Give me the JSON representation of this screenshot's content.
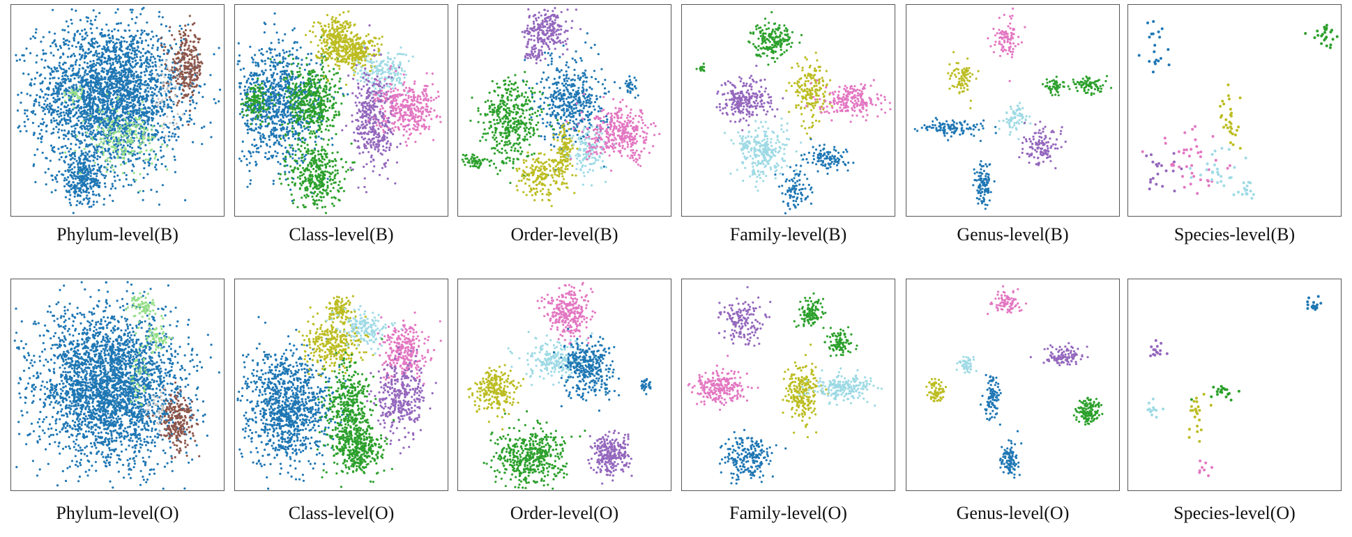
{
  "palette": {
    "blue": "#1f77b4",
    "green": "#2ca02c",
    "olive": "#bcbd22",
    "cyan": "#9edae5",
    "purple": "#9467bd",
    "pink": "#e377c2",
    "brown": "#8c564b",
    "lightgreen": "#98df8a",
    "grey": "#c7c7c7"
  },
  "chart_data": [
    {
      "type": "scatter",
      "title": "Phylum-level(B)",
      "grid": false,
      "clusters": [
        {
          "color": "blue",
          "center": [
            -4,
            7
          ],
          "spread": [
            17,
            17
          ],
          "n": 2600
        },
        {
          "color": "blue",
          "center": [
            -16,
            -32
          ],
          "spread": [
            6,
            6
          ],
          "n": 300
        },
        {
          "color": "brown",
          "center": [
            32,
            21
          ],
          "spread": [
            4,
            8
          ],
          "n": 260
        },
        {
          "color": "lightgreen",
          "center": [
            2,
            -13
          ],
          "spread": [
            8,
            7
          ],
          "n": 200
        },
        {
          "color": "lightgreen",
          "center": [
            -20,
            8
          ],
          "spread": [
            2,
            2
          ],
          "n": 30
        },
        {
          "color": "grey",
          "center": [
            22,
            8
          ],
          "spread": [
            4,
            8
          ],
          "n": 40
        }
      ]
    },
    {
      "type": "scatter",
      "title": "Class-level(B)",
      "grid": false,
      "clusters": [
        {
          "color": "blue",
          "center": [
            -30,
            3
          ],
          "spread": [
            10,
            14
          ],
          "n": 900
        },
        {
          "color": "green",
          "center": [
            -40,
            5
          ],
          "spread": [
            3,
            4
          ],
          "n": 120
        },
        {
          "color": "green",
          "center": [
            -14,
            5
          ],
          "spread": [
            6,
            9
          ],
          "n": 450
        },
        {
          "color": "green",
          "center": [
            -12,
            -30
          ],
          "spread": [
            6,
            8
          ],
          "n": 350
        },
        {
          "color": "olive",
          "center": [
            -3,
            33
          ],
          "spread": [
            5,
            6
          ],
          "n": 300
        },
        {
          "color": "olive",
          "center": [
            8,
            28
          ],
          "spread": [
            5,
            4
          ],
          "n": 200
        },
        {
          "color": "cyan",
          "center": [
            19,
            18
          ],
          "spread": [
            6,
            5
          ],
          "n": 180
        },
        {
          "color": "purple",
          "center": [
            15,
            -5
          ],
          "spread": [
            5,
            12
          ],
          "n": 380
        },
        {
          "color": "pink",
          "center": [
            31,
            1
          ],
          "spread": [
            7,
            6
          ],
          "n": 350
        }
      ]
    },
    {
      "type": "scatter",
      "title": "Order-level(B)",
      "grid": false,
      "clusters": [
        {
          "color": "purple",
          "center": [
            -9,
            38
          ],
          "spread": [
            5,
            5
          ],
          "n": 220
        },
        {
          "color": "purple",
          "center": [
            -14,
            28
          ],
          "spread": [
            2,
            2
          ],
          "n": 40
        },
        {
          "color": "blue",
          "center": [
            3,
            5
          ],
          "spread": [
            8,
            10
          ],
          "n": 450
        },
        {
          "color": "blue",
          "center": [
            31,
            12
          ],
          "spread": [
            1.5,
            2
          ],
          "n": 30
        },
        {
          "color": "green",
          "center": [
            -25,
            -5
          ],
          "spread": [
            7,
            10
          ],
          "n": 400
        },
        {
          "color": "green",
          "center": [
            -42,
            -24
          ],
          "spread": [
            3,
            2
          ],
          "n": 50
        },
        {
          "color": "olive",
          "center": [
            -11,
            -30
          ],
          "spread": [
            6,
            5
          ],
          "n": 200
        },
        {
          "color": "olive",
          "center": [
            0,
            -18
          ],
          "spread": [
            2,
            5
          ],
          "n": 100
        },
        {
          "color": "cyan",
          "center": [
            11,
            -20
          ],
          "spread": [
            4,
            6
          ],
          "n": 130
        },
        {
          "color": "pink",
          "center": [
            26,
            -11
          ],
          "spread": [
            8,
            6
          ],
          "n": 350
        }
      ]
    },
    {
      "type": "scatter",
      "title": "Family-level(B)",
      "grid": false,
      "clusters": [
        {
          "color": "green",
          "center": [
            -8,
            34
          ],
          "spread": [
            5,
            4
          ],
          "n": 180
        },
        {
          "color": "green",
          "center": [
            -41,
            20
          ],
          "spread": [
            1,
            1
          ],
          "n": 12
        },
        {
          "color": "purple",
          "center": [
            -20,
            5
          ],
          "spread": [
            6,
            5
          ],
          "n": 230
        },
        {
          "color": "olive",
          "center": [
            10,
            9
          ],
          "spread": [
            4,
            7
          ],
          "n": 180
        },
        {
          "color": "pink",
          "center": [
            30,
            5
          ],
          "spread": [
            7,
            4
          ],
          "n": 200
        },
        {
          "color": "cyan",
          "center": [
            -12,
            -19
          ],
          "spread": [
            6,
            6
          ],
          "n": 260
        },
        {
          "color": "blue",
          "center": [
            18,
            -22
          ],
          "spread": [
            5,
            3
          ],
          "n": 100
        },
        {
          "color": "blue",
          "center": [
            3,
            -37
          ],
          "spread": [
            3,
            5
          ],
          "n": 90
        }
      ]
    },
    {
      "type": "scatter",
      "title": "Genus-level(B)",
      "grid": false,
      "clusters": [
        {
          "color": "pink",
          "center": [
            -3,
            34
          ],
          "spread": [
            3,
            5
          ],
          "n": 90
        },
        {
          "color": "olive",
          "center": [
            -24,
            16
          ],
          "spread": [
            3,
            4
          ],
          "n": 80
        },
        {
          "color": "green",
          "center": [
            19,
            12
          ],
          "spread": [
            2,
            2
          ],
          "n": 50
        },
        {
          "color": "green",
          "center": [
            35,
            12
          ],
          "spread": [
            4,
            2
          ],
          "n": 80
        },
        {
          "color": "blue",
          "center": [
            -28,
            -8
          ],
          "spread": [
            8,
            2
          ],
          "n": 110
        },
        {
          "color": "cyan",
          "center": [
            1,
            -3
          ],
          "spread": [
            3,
            3
          ],
          "n": 70
        },
        {
          "color": "purple",
          "center": [
            13,
            -17
          ],
          "spread": [
            4,
            4
          ],
          "n": 120
        },
        {
          "color": "blue",
          "center": [
            -14,
            -34
          ],
          "spread": [
            2,
            6
          ],
          "n": 110
        }
      ]
    },
    {
      "type": "scatter",
      "title": "Species-level(B)",
      "grid": false,
      "clusters": [
        {
          "color": "blue",
          "center": [
            -38,
            30
          ],
          "spread": [
            3,
            6
          ],
          "n": 20
        },
        {
          "color": "green",
          "center": [
            40,
            36
          ],
          "spread": [
            3,
            3
          ],
          "n": 25
        },
        {
          "color": "olive",
          "center": [
            -3,
            -2
          ],
          "spread": [
            3,
            7
          ],
          "n": 30
        },
        {
          "color": "purple",
          "center": [
            -34,
            -31
          ],
          "spread": [
            4,
            5
          ],
          "n": 20
        },
        {
          "color": "pink",
          "center": [
            -20,
            -25
          ],
          "spread": [
            8,
            8
          ],
          "n": 40
        },
        {
          "color": "cyan",
          "center": [
            -7,
            -28
          ],
          "spread": [
            6,
            6
          ],
          "n": 25
        },
        {
          "color": "cyan",
          "center": [
            5,
            -37
          ],
          "spread": [
            3,
            2
          ],
          "n": 15
        }
      ]
    },
    {
      "type": "scatter",
      "title": "Phylum-level(O)",
      "grid": false,
      "clusters": [
        {
          "color": "blue",
          "center": [
            -4,
            -1
          ],
          "spread": [
            17,
            18
          ],
          "n": 2800
        },
        {
          "color": "lightgreen",
          "center": [
            12,
            37
          ],
          "spread": [
            3,
            3
          ],
          "n": 70
        },
        {
          "color": "lightgreen",
          "center": [
            18,
            23
          ],
          "spread": [
            3,
            3
          ],
          "n": 60
        },
        {
          "color": "lightgreen",
          "center": [
            10,
            5
          ],
          "spread": [
            2,
            8
          ],
          "n": 40
        },
        {
          "color": "brown",
          "center": [
            28,
            -17
          ],
          "spread": [
            4,
            6
          ],
          "n": 220
        },
        {
          "color": "grey",
          "center": [
            18,
            -10
          ],
          "spread": [
            2,
            4
          ],
          "n": 30
        }
      ]
    },
    {
      "type": "scatter",
      "title": "Class-level(O)",
      "grid": false,
      "clusters": [
        {
          "color": "blue",
          "center": [
            -26,
            -10
          ],
          "spread": [
            10,
            13
          ],
          "n": 1000
        },
        {
          "color": "olive",
          "center": [
            -1,
            36
          ],
          "spread": [
            3,
            3
          ],
          "n": 100
        },
        {
          "color": "olive",
          "center": [
            -3,
            20
          ],
          "spread": [
            7,
            6
          ],
          "n": 300
        },
        {
          "color": "cyan",
          "center": [
            11,
            27
          ],
          "spread": [
            6,
            4
          ],
          "n": 150
        },
        {
          "color": "pink",
          "center": [
            29,
            16
          ],
          "spread": [
            5,
            6
          ],
          "n": 280
        },
        {
          "color": "purple",
          "center": [
            27,
            -6
          ],
          "spread": [
            6,
            9
          ],
          "n": 330
        },
        {
          "color": "green",
          "center": [
            3,
            -10
          ],
          "spread": [
            5,
            10
          ],
          "n": 400
        },
        {
          "color": "green",
          "center": [
            7,
            -30
          ],
          "spread": [
            6,
            6
          ],
          "n": 350
        }
      ]
    },
    {
      "type": "scatter",
      "title": "Order-level(O)",
      "grid": false,
      "clusters": [
        {
          "color": "pink",
          "center": [
            1,
            34
          ],
          "spread": [
            5,
            6
          ],
          "n": 280
        },
        {
          "color": "cyan",
          "center": [
            -5,
            12
          ],
          "spread": [
            7,
            5
          ],
          "n": 220
        },
        {
          "color": "blue",
          "center": [
            11,
            8
          ],
          "spread": [
            6,
            7
          ],
          "n": 320
        },
        {
          "color": "blue",
          "center": [
            38,
            0
          ],
          "spread": [
            1.5,
            1.5
          ],
          "n": 30
        },
        {
          "color": "olive",
          "center": [
            -33,
            -3
          ],
          "spread": [
            5,
            5
          ],
          "n": 220
        },
        {
          "color": "green",
          "center": [
            -17,
            -34
          ],
          "spread": [
            8,
            7
          ],
          "n": 450
        },
        {
          "color": "purple",
          "center": [
            21,
            -33
          ],
          "spread": [
            4,
            5
          ],
          "n": 260
        }
      ]
    },
    {
      "type": "scatter",
      "title": "Family-level(O)",
      "grid": false,
      "clusters": [
        {
          "color": "green",
          "center": [
            10,
            34
          ],
          "spread": [
            3,
            4
          ],
          "n": 110
        },
        {
          "color": "green",
          "center": [
            24,
            20
          ],
          "spread": [
            3,
            3
          ],
          "n": 90
        },
        {
          "color": "purple",
          "center": [
            -22,
            30
          ],
          "spread": [
            5,
            5
          ],
          "n": 150
        },
        {
          "color": "pink",
          "center": [
            -32,
            -1
          ],
          "spread": [
            6,
            4
          ],
          "n": 220
        },
        {
          "color": "olive",
          "center": [
            6,
            -3
          ],
          "spread": [
            4,
            7
          ],
          "n": 220
        },
        {
          "color": "cyan",
          "center": [
            26,
            -1
          ],
          "spread": [
            7,
            3
          ],
          "n": 200
        },
        {
          "color": "blue",
          "center": [
            -20,
            -34
          ],
          "spread": [
            5,
            5
          ],
          "n": 200
        }
      ]
    },
    {
      "type": "scatter",
      "title": "Genus-level(O)",
      "grid": false,
      "clusters": [
        {
          "color": "pink",
          "center": [
            -3,
            39
          ],
          "spread": [
            3,
            3
          ],
          "n": 80
        },
        {
          "color": "cyan",
          "center": [
            -22,
            10
          ],
          "spread": [
            2,
            2
          ],
          "n": 50
        },
        {
          "color": "olive",
          "center": [
            -36,
            -2
          ],
          "spread": [
            2,
            3
          ],
          "n": 70
        },
        {
          "color": "blue",
          "center": [
            -10,
            -6
          ],
          "spread": [
            2,
            5
          ],
          "n": 90
        },
        {
          "color": "purple",
          "center": [
            23,
            14
          ],
          "spread": [
            5,
            2
          ],
          "n": 100
        },
        {
          "color": "green",
          "center": [
            35,
            -12
          ],
          "spread": [
            3,
            3
          ],
          "n": 130
        },
        {
          "color": "blue",
          "center": [
            -2,
            -35
          ],
          "spread": [
            2,
            4
          ],
          "n": 100
        }
      ]
    },
    {
      "type": "scatter",
      "title": "Species-level(O)",
      "grid": false,
      "clusters": [
        {
          "color": "blue",
          "center": [
            37,
            38
          ],
          "spread": [
            2,
            1.5
          ],
          "n": 18
        },
        {
          "color": "purple",
          "center": [
            -36,
            16
          ],
          "spread": [
            2,
            3
          ],
          "n": 14
        },
        {
          "color": "green",
          "center": [
            -6,
            -3
          ],
          "spread": [
            5,
            2
          ],
          "n": 20
        },
        {
          "color": "cyan",
          "center": [
            -38,
            -11
          ],
          "spread": [
            2,
            2.5
          ],
          "n": 12
        },
        {
          "color": "olive",
          "center": [
            -19,
            -13
          ],
          "spread": [
            3,
            6
          ],
          "n": 22
        },
        {
          "color": "pink",
          "center": [
            -15,
            -39
          ],
          "spread": [
            1.5,
            2
          ],
          "n": 8
        }
      ]
    }
  ]
}
